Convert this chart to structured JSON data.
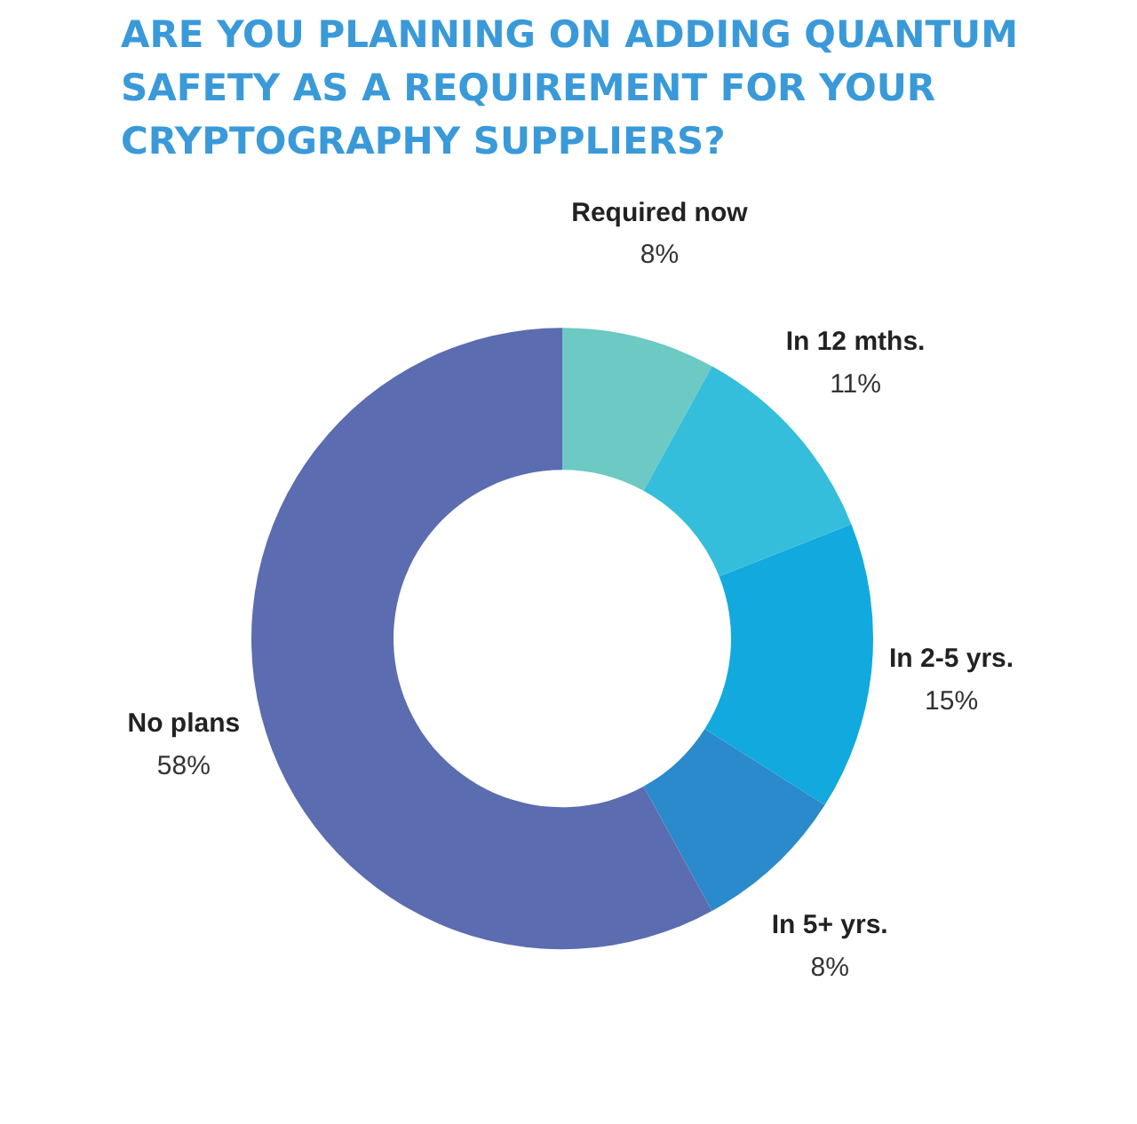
{
  "chart_data": {
    "type": "donut",
    "title": "ARE YOU PLANNING ON ADDING QUANTUM SAFETY AS A REQUIREMENT FOR YOUR CRYPTOGRAPHY SUPPLIERS?",
    "categories": [
      "Required now",
      "In 12 mths.",
      "In 2-5 yrs.",
      "In 5+ yrs.",
      "No plans"
    ],
    "values": [
      8,
      11,
      15,
      8,
      58
    ],
    "value_labels": [
      "8%",
      "11%",
      "15%",
      "8%",
      "58%"
    ],
    "colors": [
      "#6cc9c4",
      "#34bedb",
      "#12a9df",
      "#2a8acb",
      "#5b6cb0"
    ]
  }
}
